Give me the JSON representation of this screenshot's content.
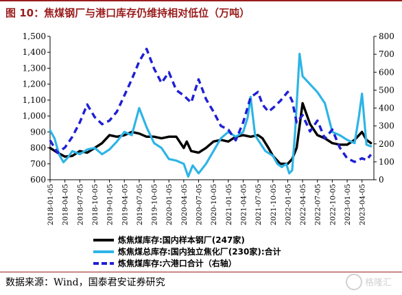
{
  "title": "图 10：焦煤钢厂与港口库存仍维持相对低位（万吨）",
  "source": "数据来源：Wind，国泰君安证券研究",
  "watermark": "格隆汇",
  "chart_data": {
    "type": "line",
    "title": "",
    "left_axis": {
      "ticks": [
        "600",
        "700",
        "800",
        "900",
        "1,000",
        "1,100",
        "1,200",
        "1,300",
        "1,400",
        "1,500"
      ],
      "range": [
        600,
        1500
      ]
    },
    "right_axis": {
      "ticks": [
        "0",
        "100",
        "200",
        "300",
        "400",
        "500",
        "600",
        "700",
        "800"
      ],
      "range": [
        0,
        800
      ]
    },
    "x_ticks": [
      "2018-01-05",
      "2018-04-05",
      "2018-07-05",
      "2018-10-05",
      "2019-01-05",
      "2019-04-05",
      "2019-07-05",
      "2019-10-05",
      "2020-01-05",
      "2020-04-05",
      "2020-07-05",
      "2020-10-05",
      "2021-01-05",
      "2021-04-05",
      "2021-07-05",
      "2021-10-05",
      "2022-01-05",
      "2022-04-05",
      "2022-07-05",
      "2022-10-05",
      "2023-01-05",
      "2023-04-05"
    ],
    "x_range": [
      0,
      21.8
    ],
    "grid": false,
    "legend_position": "bottom",
    "series": [
      {
        "name": "炼焦煤库存:国内样本钢厂(247家)",
        "axis": "left",
        "color": "#000000",
        "style": "solid",
        "x": [
          0,
          0.5,
          1,
          1.5,
          2,
          2.5,
          3,
          3.5,
          4,
          4.5,
          5,
          5.5,
          6,
          6.5,
          7,
          7.5,
          8,
          8.5,
          9,
          9.2,
          9.5,
          10,
          10.5,
          11,
          11.5,
          12,
          12.5,
          13,
          13.5,
          14,
          14.3,
          14.7,
          15,
          15.5,
          16,
          16.3,
          16.6,
          17,
          17.5,
          18,
          18.5,
          19,
          19.5,
          20,
          20.5,
          21,
          21.3,
          21.6
        ],
        "y": [
          800,
          770,
          745,
          750,
          780,
          770,
          800,
          830,
          880,
          870,
          880,
          900,
          890,
          870,
          870,
          860,
          870,
          870,
          800,
          840,
          780,
          770,
          800,
          840,
          850,
          840,
          870,
          880,
          870,
          880,
          860,
          800,
          750,
          700,
          700,
          730,
          800,
          1080,
          950,
          880,
          860,
          830,
          820,
          820,
          850,
          900,
          850,
          830
        ]
      },
      {
        "name": "炼焦煤总库存:国内独立焦化厂(230家):合计",
        "axis": "left",
        "color": "#2db4e6",
        "style": "solid",
        "x": [
          0,
          0.3,
          0.6,
          0.9,
          1.2,
          1.5,
          2,
          2.5,
          3,
          3.5,
          4,
          4.5,
          5,
          5.5,
          6,
          6.5,
          7,
          7.5,
          8,
          8.5,
          9,
          9.3,
          9.6,
          10,
          10.5,
          11,
          11.5,
          12,
          12.5,
          13,
          13.3,
          13.5,
          13.8,
          14,
          14.5,
          15,
          15.3,
          15.6,
          15.9,
          16.1,
          16.3,
          16.5,
          16.8,
          17,
          17.5,
          18,
          18.5,
          19,
          19.5,
          20,
          20.5,
          20.8,
          21,
          21.3,
          21.6
        ],
        "y": [
          910,
          860,
          760,
          710,
          740,
          780,
          760,
          790,
          800,
          760,
          790,
          840,
          900,
          880,
          1050,
          930,
          830,
          800,
          730,
          720,
          700,
          620,
          690,
          640,
          700,
          780,
          860,
          900,
          870,
          900,
          990,
          1120,
          880,
          850,
          780,
          750,
          700,
          680,
          700,
          640,
          660,
          900,
          1390,
          1250,
          1200,
          1150,
          1080,
          900,
          880,
          850,
          830,
          1000,
          1140,
          820,
          810
        ]
      },
      {
        "name": "炼焦煤库存:六港口合计（右轴）",
        "axis": "right",
        "color": "#1f1fd6",
        "style": "dashed",
        "x": [
          0,
          0.5,
          1,
          1.5,
          2,
          2.5,
          3,
          3.5,
          4,
          4.5,
          5,
          5.5,
          6,
          6.5,
          7,
          7.5,
          8,
          8.5,
          9,
          9.5,
          10,
          10.5,
          11,
          11.5,
          12,
          12.5,
          13,
          13.5,
          14,
          14.3,
          14.7,
          15,
          15.5,
          16,
          16.3,
          16.6,
          17,
          17.5,
          18,
          18.5,
          19,
          19.5,
          20,
          20.5,
          21,
          21.3,
          21.6
        ],
        "y": [
          220,
          150,
          180,
          240,
          320,
          420,
          350,
          310,
          330,
          380,
          470,
          560,
          660,
          730,
          620,
          540,
          600,
          500,
          470,
          430,
          560,
          450,
          380,
          300,
          280,
          220,
          320,
          460,
          490,
          420,
          380,
          400,
          440,
          490,
          440,
          320,
          360,
          270,
          330,
          230,
          280,
          180,
          120,
          100,
          120,
          110,
          140
        ]
      }
    ]
  }
}
